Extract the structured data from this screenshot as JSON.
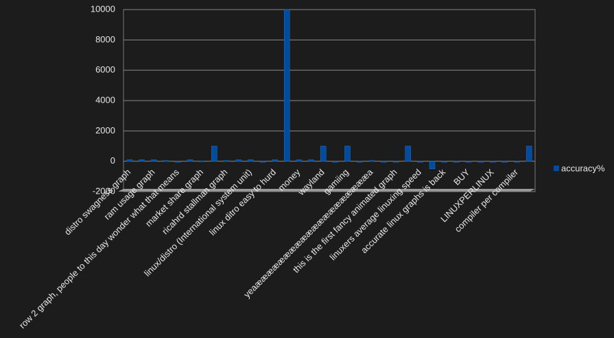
{
  "chart_data": {
    "type": "bar",
    "categories": [
      "distro swagness graph",
      null,
      "ram usage graph",
      null,
      "row 2 graph, people to this day wonder what that means",
      null,
      "market share graph",
      null,
      "ricahrd stallman graph",
      null,
      "linux/distro (International system unit)",
      null,
      "linux ditro easy to hurd",
      null,
      "money",
      null,
      "wayland",
      null,
      "gamiing",
      null,
      "yeaææææææææææææææææææææa",
      null,
      "this is the first fancy animated graph",
      null,
      "linuxers average linuxing speed",
      null,
      "accurate linux graphs is back",
      null,
      "BUY",
      null,
      "LINUXPERLINUX",
      null,
      "compiler per compiler",
      null
    ],
    "series": [
      {
        "name": "accuracy%",
        "color": "#004c9e",
        "values": [
          100,
          100,
          100,
          50,
          0,
          100,
          30,
          1000,
          50,
          100,
          100,
          0,
          100,
          10000,
          100,
          100,
          1000,
          0,
          1000,
          0,
          50,
          0,
          0,
          1000,
          -50,
          -500,
          0,
          0,
          0,
          0,
          0,
          0,
          0,
          1000
        ]
      }
    ],
    "ylim": [
      -2000,
      10000
    ],
    "yticks": [
      -2000,
      0,
      2000,
      4000,
      6000,
      8000,
      10000
    ],
    "grid": true,
    "legend": "right"
  }
}
